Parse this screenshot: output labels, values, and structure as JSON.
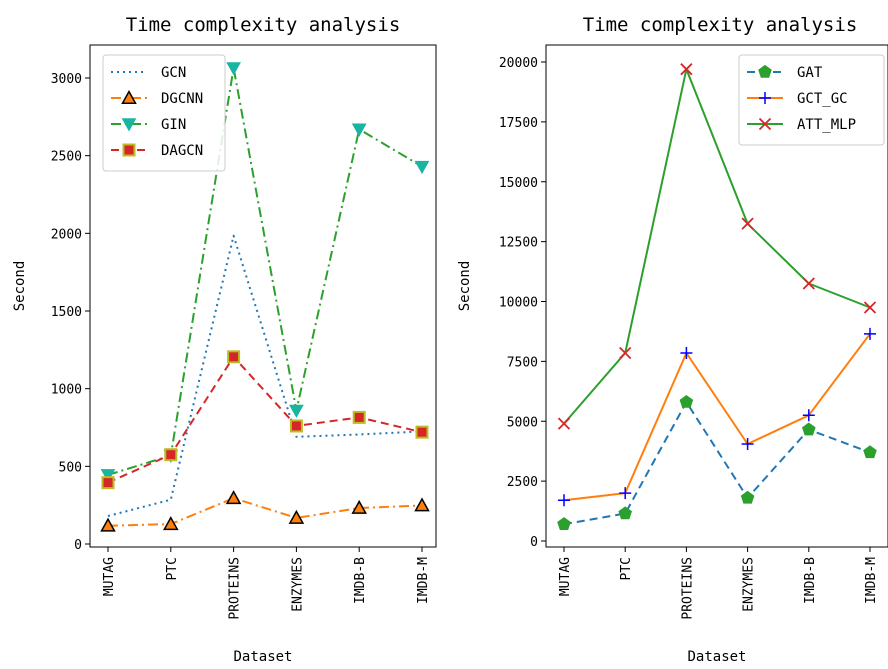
{
  "chart_data": [
    {
      "type": "line",
      "title": "Time complexity analysis",
      "xlabel": "Dataset",
      "ylabel": "Second",
      "categories": [
        "MUTAG",
        "PTC",
        "PROTEINS",
        "ENZYMES",
        "IMDB-B",
        "IMDB-M"
      ],
      "ylim": [
        -60,
        3200
      ],
      "yticks": [
        0,
        500,
        1000,
        1500,
        2000,
        2500,
        3000
      ],
      "legend_position": "top-left",
      "grid": false,
      "series": [
        {
          "name": "GCN",
          "values": [
            180,
            285,
            1985,
            690,
            705,
            725
          ],
          "color": "#1f77b4",
          "line_style": "dotted",
          "marker": "none"
        },
        {
          "name": "DGCNN",
          "values": [
            118,
            128,
            295,
            168,
            232,
            248
          ],
          "color": "#ff7f0e",
          "line_style": "dashdot",
          "marker": "triangle-up"
        },
        {
          "name": "GIN",
          "values": [
            445,
            570,
            3065,
            860,
            2670,
            2430
          ],
          "color": "#2ca02c",
          "line_style": "dashdot",
          "marker": "triangle-down"
        },
        {
          "name": "DAGCN",
          "values": [
            395,
            575,
            1205,
            760,
            815,
            720
          ],
          "color": "#d62728",
          "line_style": "dashed",
          "marker": "square"
        }
      ]
    },
    {
      "type": "line",
      "title": "Time complexity analysis",
      "xlabel": "Dataset",
      "ylabel": "Second",
      "categories": [
        "MUTAG",
        "PTC",
        "PROTEINS",
        "ENZYMES",
        "IMDB-B",
        "IMDB-M"
      ],
      "ylim": [
        -500,
        20650
      ],
      "yticks": [
        0,
        2500,
        5000,
        7500,
        10000,
        12500,
        15000,
        17500,
        20000
      ],
      "legend_position": "top-right",
      "grid": false,
      "series": [
        {
          "name": "GAT",
          "values": [
            700,
            1150,
            5800,
            1800,
            4650,
            3700
          ],
          "color": "#1f77b4",
          "line_style": "dashed",
          "marker": "pentagon"
        },
        {
          "name": "GCT_GC",
          "values": [
            1700,
            2000,
            7850,
            4050,
            5250,
            8650
          ],
          "color": "#ff7f0e",
          "line_style": "solid",
          "marker": "plus"
        },
        {
          "name": "ATT_MLP",
          "values": [
            4900,
            7850,
            19700,
            13250,
            10750,
            9750
          ],
          "color": "#2ca02c",
          "line_style": "solid",
          "marker": "x"
        }
      ]
    }
  ]
}
